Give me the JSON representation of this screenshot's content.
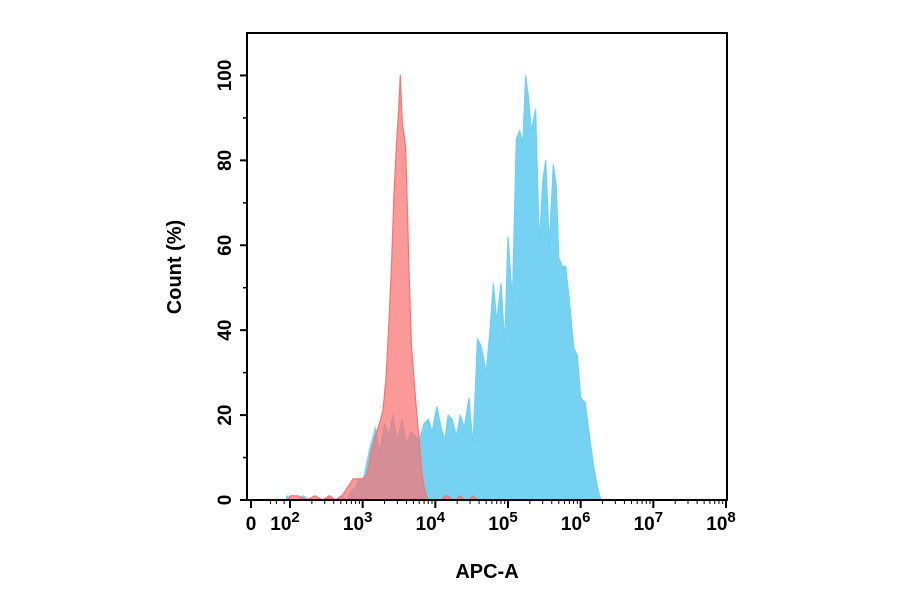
{
  "chart_data": {
    "type": "area",
    "xlabel": "APC-A",
    "ylabel": "Count  (%)",
    "x_scale": "log",
    "xlim": [
      0,
      100000000
    ],
    "ylim": [
      0,
      110
    ],
    "x_ticks": [
      {
        "value": 0,
        "base": "0",
        "exp": ""
      },
      {
        "value": 100,
        "base": "10",
        "exp": "2"
      },
      {
        "value": 1000,
        "base": "10",
        "exp": "3"
      },
      {
        "value": 10000,
        "base": "10",
        "exp": "4"
      },
      {
        "value": 100000,
        "base": "10",
        "exp": "5"
      },
      {
        "value": 1000000,
        "base": "10",
        "exp": "6"
      },
      {
        "value": 10000000,
        "base": "10",
        "exp": "7"
      },
      {
        "value": 100000000,
        "base": "10",
        "exp": "8"
      }
    ],
    "y_ticks": [
      {
        "value": 0,
        "label": "0"
      },
      {
        "value": 20,
        "label": "20"
      },
      {
        "value": 40,
        "label": "40"
      },
      {
        "value": 60,
        "label": "60"
      },
      {
        "value": 80,
        "label": "80"
      },
      {
        "value": 100,
        "label": "100"
      }
    ],
    "grid": false,
    "series": [
      {
        "color": "#6fd0f2",
        "x": [
          0,
          12,
          32,
          60,
          72,
          100,
          130,
          150,
          190,
          230,
          280,
          350,
          420,
          500,
          600,
          700,
          800,
          900,
          1000,
          1250,
          1500,
          1700,
          2000,
          2300,
          2600,
          3000,
          3500,
          4000,
          4600,
          5300,
          6000,
          7000,
          8000,
          9000,
          10500,
          12000,
          13500,
          15000,
          17000,
          19500,
          22000,
          25000,
          29000,
          33000,
          38000,
          43000,
          50000,
          56000,
          63000,
          70000,
          80000,
          90000,
          100000,
          115000,
          130000,
          145000,
          160000,
          175000,
          190000,
          210000,
          240000,
          270000,
          300000,
          330000,
          370000,
          420000,
          460000,
          500000,
          560000,
          620000,
          700000,
          800000,
          900000,
          1000000,
          1150000,
          1300000,
          1500000,
          1700000,
          1900000,
          2100000,
          2400000,
          2700000
        ],
        "y": [
          0,
          0,
          0,
          0,
          1,
          0,
          0,
          1,
          0,
          0,
          0,
          1,
          0,
          1,
          0,
          2,
          3,
          5,
          4,
          12,
          17,
          11,
          18,
          15,
          20,
          14,
          19,
          13,
          16,
          15,
          14,
          18,
          19,
          16,
          22,
          17,
          14,
          20,
          19,
          15,
          20,
          17,
          24,
          13,
          38,
          36,
          30,
          39,
          51,
          42,
          51,
          37,
          62,
          47,
          85,
          87,
          84,
          100,
          95,
          87,
          92,
          60,
          75,
          80,
          60,
          79,
          74,
          57,
          55,
          55,
          47,
          36,
          34,
          24,
          23,
          16,
          8,
          3,
          0,
          0,
          0,
          0
        ]
      },
      {
        "color": "#fa7272",
        "x": [
          0,
          12,
          25,
          45,
          60,
          80,
          100,
          130,
          170,
          220,
          280,
          350,
          430,
          520,
          620,
          740,
          860,
          1000,
          1150,
          1300,
          1500,
          1700,
          1900,
          2100,
          2300,
          2500,
          2700,
          2900,
          3100,
          3300,
          3500,
          3700,
          3900,
          4100,
          4400,
          4700,
          5000,
          5500,
          6000,
          6500,
          7000,
          7500,
          8000,
          8500,
          9000,
          10000,
          11000,
          12000,
          13500,
          15000,
          17000,
          19000,
          22000,
          25000,
          29000,
          33000,
          38000
        ],
        "y": [
          0,
          0,
          0,
          0,
          0,
          0,
          1,
          1,
          0,
          1,
          0,
          1,
          0,
          1,
          3,
          5,
          5,
          5,
          6,
          11,
          15,
          18,
          21,
          29,
          42,
          56,
          72,
          83,
          91,
          100,
          89,
          86,
          83,
          70,
          51,
          36,
          30,
          21,
          14,
          7,
          3,
          1,
          0,
          0,
          0,
          0,
          0,
          0,
          1,
          1,
          0,
          0,
          1,
          0,
          0,
          1,
          0
        ]
      }
    ]
  }
}
